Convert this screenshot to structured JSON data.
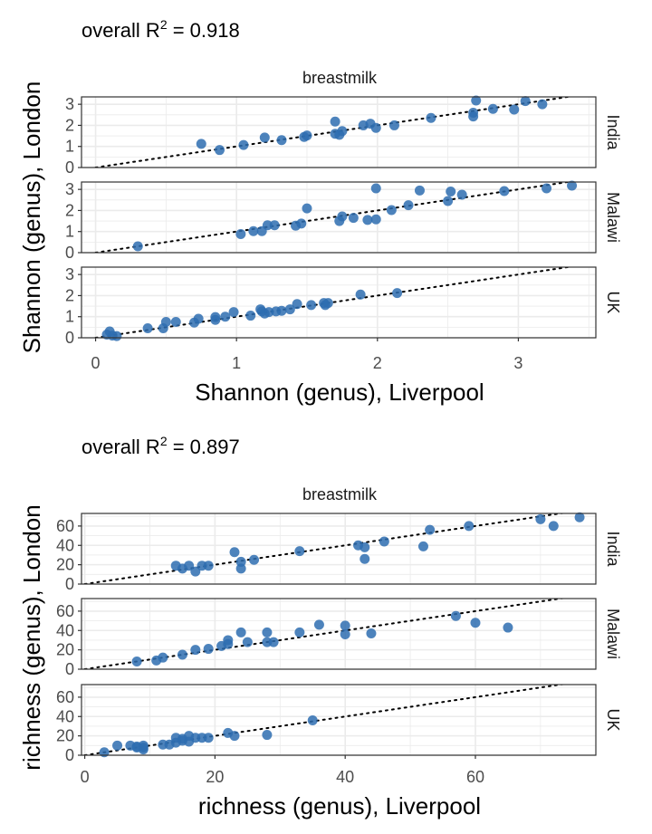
{
  "colors": {
    "point": "#2e6db0",
    "grid": "#ebebeb",
    "panel_border": "#333333",
    "text": "#000000",
    "tick_text": "#4d4d4d"
  },
  "point_icon": "circle",
  "chart_data": [
    {
      "type": "scatter",
      "annotation": {
        "prefix": "overall R",
        "sup": "2",
        "suffix": " =  0.918"
      },
      "facet_title": "breastmilk",
      "xlabel": "Shannon (genus), Liverpool",
      "ylabel": "Shannon (genus), London",
      "xlim": [
        -0.1,
        3.55
      ],
      "ylim": [
        0,
        3.35
      ],
      "x_ticks": [
        0,
        1,
        2,
        3
      ],
      "x_tick_labels": [
        "0",
        "1",
        "2",
        "3"
      ],
      "y_ticks": [
        0,
        1,
        2,
        3
      ],
      "y_tick_labels": [
        "0",
        "1",
        "2",
        "3"
      ],
      "reference_line": {
        "style": "dotted",
        "x": [
          0,
          3.55
        ],
        "y": [
          0,
          3.55
        ]
      },
      "panels": [
        {
          "strip": "India",
          "points": [
            [
              0.75,
              1.12
            ],
            [
              0.88,
              0.83
            ],
            [
              1.05,
              1.07
            ],
            [
              1.2,
              1.42
            ],
            [
              1.32,
              1.3
            ],
            [
              1.48,
              1.45
            ],
            [
              1.5,
              1.52
            ],
            [
              1.7,
              2.18
            ],
            [
              1.7,
              1.6
            ],
            [
              1.73,
              1.55
            ],
            [
              1.75,
              1.73
            ],
            [
              1.9,
              2.0
            ],
            [
              1.95,
              2.08
            ],
            [
              1.99,
              1.88
            ],
            [
              2.12,
              2.0
            ],
            [
              2.38,
              2.35
            ],
            [
              2.68,
              2.6
            ],
            [
              2.68,
              2.42
            ],
            [
              2.7,
              3.18
            ],
            [
              2.82,
              2.78
            ],
            [
              2.97,
              2.75
            ],
            [
              3.05,
              3.15
            ],
            [
              3.17,
              3.0
            ]
          ]
        },
        {
          "strip": "Malawi",
          "points": [
            [
              0.3,
              0.3
            ],
            [
              1.03,
              0.88
            ],
            [
              1.12,
              1.02
            ],
            [
              1.18,
              1.02
            ],
            [
              1.22,
              1.3
            ],
            [
              1.27,
              1.3
            ],
            [
              1.42,
              1.28
            ],
            [
              1.46,
              1.38
            ],
            [
              1.5,
              2.1
            ],
            [
              1.73,
              1.5
            ],
            [
              1.75,
              1.72
            ],
            [
              1.83,
              1.65
            ],
            [
              1.93,
              1.55
            ],
            [
              1.99,
              1.58
            ],
            [
              1.99,
              3.05
            ],
            [
              2.1,
              2.02
            ],
            [
              2.22,
              2.25
            ],
            [
              2.3,
              2.95
            ],
            [
              2.5,
              2.45
            ],
            [
              2.52,
              2.9
            ],
            [
              2.6,
              2.75
            ],
            [
              2.9,
              2.92
            ],
            [
              3.2,
              3.05
            ],
            [
              3.38,
              3.18
            ]
          ]
        },
        {
          "strip": "UK",
          "points": [
            [
              0.08,
              0.15
            ],
            [
              0.1,
              0.3
            ],
            [
              0.12,
              0.1
            ],
            [
              0.15,
              0.08
            ],
            [
              0.37,
              0.45
            ],
            [
              0.48,
              0.45
            ],
            [
              0.5,
              0.75
            ],
            [
              0.57,
              0.75
            ],
            [
              0.7,
              0.72
            ],
            [
              0.73,
              0.9
            ],
            [
              0.85,
              0.98
            ],
            [
              0.85,
              0.85
            ],
            [
              0.92,
              1.0
            ],
            [
              0.98,
              1.22
            ],
            [
              1.1,
              1.05
            ],
            [
              1.17,
              1.35
            ],
            [
              1.18,
              1.25
            ],
            [
              1.2,
              1.15
            ],
            [
              1.23,
              1.22
            ],
            [
              1.28,
              1.25
            ],
            [
              1.32,
              1.28
            ],
            [
              1.38,
              1.35
            ],
            [
              1.43,
              1.6
            ],
            [
              1.53,
              1.55
            ],
            [
              1.62,
              1.65
            ],
            [
              1.63,
              1.55
            ],
            [
              1.65,
              1.65
            ],
            [
              1.88,
              2.05
            ],
            [
              2.14,
              2.12
            ]
          ]
        }
      ]
    },
    {
      "type": "scatter",
      "annotation": {
        "prefix": "overall R",
        "sup": "2",
        "suffix": " =  0.897"
      },
      "facet_title": "breastmilk",
      "xlabel": "richness (genus), Liverpool",
      "ylabel": "richness (genus), London",
      "xlim": [
        -0.5,
        78.5
      ],
      "ylim": [
        0,
        73
      ],
      "x_ticks": [
        0,
        20,
        40,
        60
      ],
      "x_tick_labels": [
        "0",
        "20",
        "40",
        "60"
      ],
      "y_ticks": [
        0,
        20,
        40,
        60
      ],
      "y_tick_labels": [
        "0",
        "20",
        "40",
        "60"
      ],
      "reference_line": {
        "style": "dotted",
        "x": [
          0,
          78.5
        ],
        "y": [
          0,
          78.5
        ]
      },
      "panels": [
        {
          "strip": "India",
          "points": [
            [
              14,
              19
            ],
            [
              15,
              16
            ],
            [
              16,
              19
            ],
            [
              17,
              13
            ],
            [
              18,
              19
            ],
            [
              19,
              19
            ],
            [
              23,
              33
            ],
            [
              24,
              23
            ],
            [
              24,
              16
            ],
            [
              26,
              25
            ],
            [
              33,
              34
            ],
            [
              42,
              40
            ],
            [
              43,
              38
            ],
            [
              43,
              26
            ],
            [
              46,
              44
            ],
            [
              52,
              39
            ],
            [
              53,
              56
            ],
            [
              59,
              60
            ],
            [
              70,
              67
            ],
            [
              72,
              60
            ],
            [
              76,
              69
            ]
          ]
        },
        {
          "strip": "Malawi",
          "points": [
            [
              8,
              8
            ],
            [
              11,
              9
            ],
            [
              12,
              12
            ],
            [
              15,
              15
            ],
            [
              17,
              20
            ],
            [
              19,
              21
            ],
            [
              21,
              24
            ],
            [
              22,
              30
            ],
            [
              22,
              26
            ],
            [
              24,
              38
            ],
            [
              25,
              28
            ],
            [
              28,
              38
            ],
            [
              28,
              28
            ],
            [
              29,
              28
            ],
            [
              33,
              38
            ],
            [
              36,
              46
            ],
            [
              40,
              45
            ],
            [
              40,
              36
            ],
            [
              44,
              37
            ],
            [
              57,
              55
            ],
            [
              60,
              48
            ],
            [
              65,
              43
            ]
          ]
        },
        {
          "strip": "UK",
          "points": [
            [
              3,
              3
            ],
            [
              5,
              10
            ],
            [
              7,
              10
            ],
            [
              8,
              8
            ],
            [
              8,
              9
            ],
            [
              9,
              10
            ],
            [
              9,
              8
            ],
            [
              9,
              6
            ],
            [
              12,
              11
            ],
            [
              13,
              11
            ],
            [
              14,
              13
            ],
            [
              14,
              18
            ],
            [
              15,
              15
            ],
            [
              15,
              17
            ],
            [
              16,
              20
            ],
            [
              16,
              14
            ],
            [
              17,
              18
            ],
            [
              18,
              18
            ],
            [
              19,
              18
            ],
            [
              22,
              23
            ],
            [
              23,
              20
            ],
            [
              28,
              21
            ],
            [
              35,
              36
            ]
          ]
        }
      ]
    }
  ]
}
